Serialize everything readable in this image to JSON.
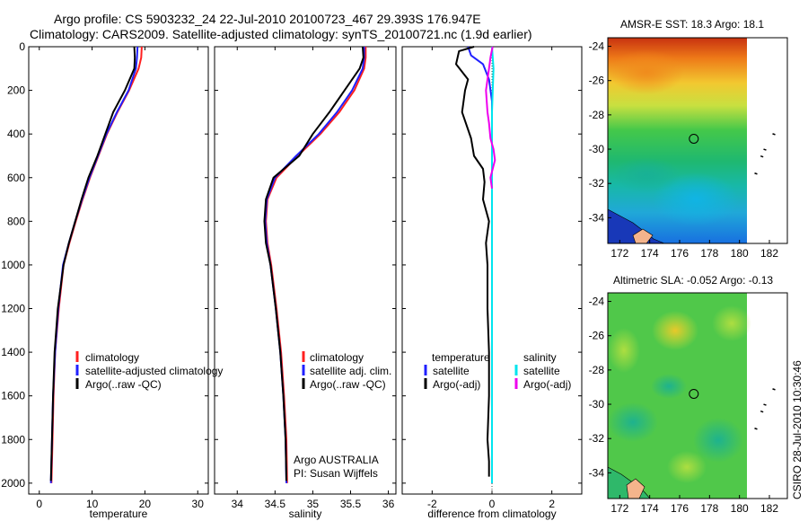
{
  "header": {
    "title_line1": "Argo profile: CS 5903232_24 22-Jul-2010 20100723_467 29.393S 176.947E",
    "title_line2": "Climatology: CARS2009. Satellite-adjusted climatology: synTS_20100721.nc (1.9d earlier)"
  },
  "side_label": "CSIRO 28-Jul-2010 10:30:46",
  "colors": {
    "climatology": "#ff2020",
    "satellite": "#2020ff",
    "argo": "#000000",
    "satellite_sal": "#00e5ee",
    "argo_sal": "#ee00ee",
    "land": "#f4b48c"
  },
  "chart_data": [
    {
      "id": "temperature",
      "type": "line",
      "xlabel": "temperature",
      "ylabel": "",
      "xlim": [
        -2,
        32
      ],
      "ylim": [
        2050,
        0
      ],
      "xticks": [
        0,
        10,
        20,
        30
      ],
      "yticks": [
        0,
        200,
        400,
        600,
        800,
        1000,
        1200,
        1400,
        1600,
        1800,
        2000
      ],
      "legend": [
        "climatology",
        "satellite-adjusted climatology",
        "Argo(..raw -QC)"
      ],
      "series": [
        {
          "name": "climatology",
          "color_key": "climatology",
          "x": [
            19.4,
            19.3,
            18.8,
            17.0,
            14.8,
            12.8,
            11.2,
            9.6,
            8.2,
            6.9,
            5.7,
            4.6,
            3.7,
            3.0,
            2.7,
            2.5,
            2.3
          ],
          "y": [
            0,
            50,
            100,
            200,
            300,
            400,
            500,
            600,
            700,
            800,
            900,
            1000,
            1200,
            1400,
            1600,
            1800,
            2000
          ]
        },
        {
          "name": "satellite-adjusted climatology",
          "color_key": "satellite",
          "x": [
            18.6,
            18.5,
            18.3,
            16.9,
            14.7,
            12.7,
            11.1,
            9.5,
            8.1,
            6.8,
            5.6,
            4.5,
            3.6,
            3.0,
            2.6,
            2.4,
            2.2
          ],
          "y": [
            0,
            50,
            100,
            200,
            300,
            400,
            500,
            600,
            700,
            800,
            900,
            1000,
            1200,
            1400,
            1600,
            1800,
            2000
          ]
        },
        {
          "name": "Argo(..raw -QC)",
          "color_key": "argo",
          "x": [
            18.0,
            18.1,
            18.0,
            16.2,
            14.0,
            12.5,
            11.0,
            9.3,
            8.0,
            6.8,
            5.6,
            4.6,
            3.5,
            2.9,
            2.6,
            2.4,
            2.2
          ],
          "y": [
            0,
            50,
            100,
            200,
            300,
            400,
            500,
            600,
            700,
            800,
            900,
            1000,
            1200,
            1400,
            1600,
            1800,
            1990
          ]
        }
      ]
    },
    {
      "id": "salinity",
      "type": "line",
      "xlabel": "salinity",
      "ylabel": "",
      "xlim": [
        33.7,
        36.1
      ],
      "ylim": [
        2050,
        0
      ],
      "xticks": [
        34,
        34.5,
        35,
        35.5,
        36
      ],
      "yticks": [
        0,
        200,
        400,
        600,
        800,
        1000,
        1200,
        1400,
        1600,
        1800,
        2000
      ],
      "legend": [
        "climatology",
        "satellite adj. clim.",
        "Argo(..raw -QC)"
      ],
      "annotation": [
        "Argo AUSTRALIA",
        "PI: Susan Wijffels"
      ],
      "series": [
        {
          "name": "climatology",
          "color_key": "climatology",
          "x": [
            35.7,
            35.7,
            35.68,
            35.55,
            35.35,
            35.1,
            34.8,
            34.52,
            34.4,
            34.38,
            34.4,
            34.45,
            34.52,
            34.58,
            34.62,
            34.65,
            34.66
          ],
          "y": [
            0,
            50,
            100,
            200,
            300,
            400,
            500,
            600,
            700,
            800,
            900,
            1000,
            1200,
            1400,
            1600,
            1800,
            2000
          ]
        },
        {
          "name": "satellite adj. clim.",
          "color_key": "satellite",
          "x": [
            35.68,
            35.68,
            35.66,
            35.52,
            35.32,
            35.08,
            34.78,
            34.5,
            34.39,
            34.37,
            34.39,
            34.44,
            34.51,
            34.57,
            34.61,
            34.64,
            34.65
          ],
          "y": [
            0,
            50,
            100,
            200,
            300,
            400,
            500,
            600,
            700,
            800,
            900,
            1000,
            1200,
            1400,
            1600,
            1800,
            2000
          ]
        },
        {
          "name": "Argo(..raw -QC)",
          "color_key": "argo",
          "x": [
            35.66,
            35.67,
            35.62,
            35.42,
            35.22,
            35.0,
            34.82,
            34.48,
            34.38,
            34.36,
            34.38,
            34.44,
            34.51,
            34.57,
            34.61,
            34.64,
            34.65
          ],
          "y": [
            0,
            50,
            100,
            200,
            300,
            400,
            500,
            600,
            700,
            800,
            900,
            1000,
            1200,
            1400,
            1600,
            1800,
            1990
          ]
        }
      ]
    },
    {
      "id": "difference",
      "type": "line",
      "xlabel": "difference from climatology",
      "ylabel": "",
      "xlim": [
        -3,
        3
      ],
      "ylim": [
        2050,
        0
      ],
      "xticks": [
        -2,
        0,
        2
      ],
      "yticks": [
        0,
        200,
        400,
        600,
        800,
        1000,
        1200,
        1400,
        1600,
        1800,
        2000
      ],
      "legend_left_title": "temperature",
      "legend_right_title": "salinity",
      "legend_left": [
        "satellite",
        "Argo(-adj)"
      ],
      "legend_right": [
        "satellite",
        "Argo(-adj)"
      ],
      "series": [
        {
          "name": "temperature satellite",
          "color_key": "satellite",
          "x": [
            -0.8,
            -0.7,
            -0.3,
            -0.1,
            0.0,
            0.0,
            0.0,
            0.0,
            0.0,
            0.0,
            0.0,
            0.0
          ],
          "y": [
            0,
            40,
            80,
            150,
            250,
            400,
            600,
            800,
            1000,
            1400,
            1800,
            2000
          ]
        },
        {
          "name": "temperature Argo(-adj)",
          "color_key": "argo",
          "x": [
            -0.6,
            -1.1,
            -1.2,
            -0.8,
            -0.9,
            -1.0,
            -0.7,
            -0.6,
            -0.3,
            -0.25,
            -0.3,
            -0.1,
            -0.2,
            -0.15,
            -0.15,
            -0.1,
            -0.1,
            -0.15,
            -0.1,
            -0.1
          ],
          "y": [
            0,
            20,
            80,
            150,
            200,
            300,
            420,
            500,
            560,
            620,
            700,
            800,
            900,
            1000,
            1200,
            1400,
            1600,
            1800,
            1900,
            1970
          ]
        },
        {
          "name": "salinity satellite",
          "color_key": "satellite_sal",
          "x": [
            0.0,
            0.05,
            0.0,
            0.0,
            0.0,
            0.0,
            0.0,
            0.0,
            0.0
          ],
          "y": [
            0,
            100,
            300,
            500,
            800,
            1200,
            1600,
            1800,
            2000
          ]
        },
        {
          "name": "salinity Argo(-adj)",
          "color_key": "argo_sal",
          "x": [
            0.02,
            -0.05,
            -0.1,
            -0.2,
            -0.15,
            -0.1,
            -0.05,
            0.05,
            0.1,
            -0.05,
            0.0
          ],
          "y": [
            0,
            50,
            100,
            200,
            300,
            350,
            420,
            470,
            520,
            600,
            650
          ]
        }
      ]
    },
    {
      "id": "sst_map",
      "type": "heatmap",
      "title": "AMSR-E SST: 18.3 Argo: 18.1",
      "xlim": [
        171.2,
        183.2
      ],
      "ylim": [
        -35.5,
        -23.5
      ],
      "xticks": [
        172,
        174,
        176,
        178,
        180,
        182
      ],
      "yticks": [
        -24,
        -26,
        -28,
        -30,
        -32,
        -34
      ],
      "data_east_limit": 180.2,
      "marker": {
        "lon": 176.947,
        "lat": -29.393
      }
    },
    {
      "id": "sla_map",
      "type": "heatmap",
      "title": "Altimetric SLA: -0.052 Argo: -0.13",
      "xlim": [
        171.2,
        183.2
      ],
      "ylim": [
        -35.5,
        -23.5
      ],
      "xticks": [
        172,
        174,
        176,
        178,
        180,
        182
      ],
      "yticks": [
        -24,
        -26,
        -28,
        -30,
        -32,
        -34
      ],
      "data_east_limit": 180.2,
      "marker": {
        "lon": 176.947,
        "lat": -29.393
      }
    }
  ]
}
